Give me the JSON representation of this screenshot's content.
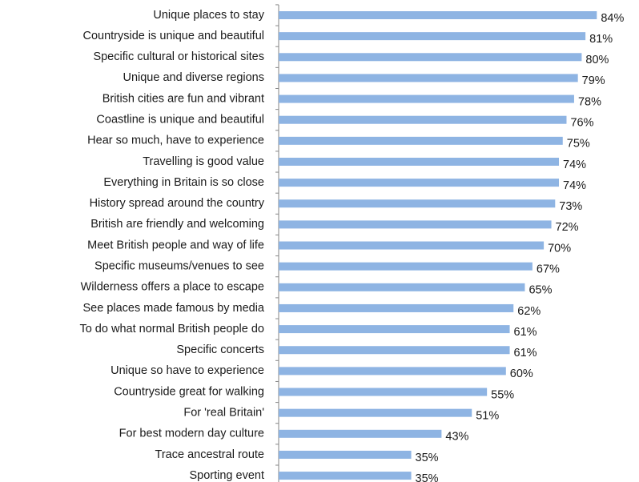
{
  "chart_data": {
    "type": "barh",
    "color": "#8eb4e3",
    "categories": [
      "Unique places to stay",
      "Countryside is unique and beautiful",
      "Specific cultural or historical sites",
      "Unique and diverse regions",
      "British cities are fun and vibrant",
      "Coastline is unique and beautiful",
      "Hear so much, have to experience",
      "Travelling is good value",
      "Everything in Britain is so close",
      "History spread around the country",
      "British are friendly and welcoming",
      "Meet British people and way of life",
      "Specific museums/venues to see",
      "Wilderness offers a place to escape",
      "See places made famous by media",
      "To do what normal British people do",
      "Specific concerts",
      "Unique so have to experience",
      "Countryside great for walking",
      "For 'real Britain'",
      "For best modern day culture",
      "Trace ancestral route",
      "Sporting event"
    ],
    "values": [
      84,
      81,
      80,
      79,
      78,
      76,
      75,
      74,
      74,
      73,
      72,
      70,
      67,
      65,
      62,
      61,
      61,
      60,
      55,
      51,
      43,
      35,
      35
    ],
    "value_labels": [
      "84%",
      "81%",
      "80%",
      "79%",
      "78%",
      "76%",
      "75%",
      "74%",
      "74%",
      "73%",
      "72%",
      "70%",
      "67%",
      "65%",
      "62%",
      "61%",
      "61%",
      "60%",
      "55%",
      "51%",
      "43%",
      "35%",
      "35%"
    ]
  }
}
